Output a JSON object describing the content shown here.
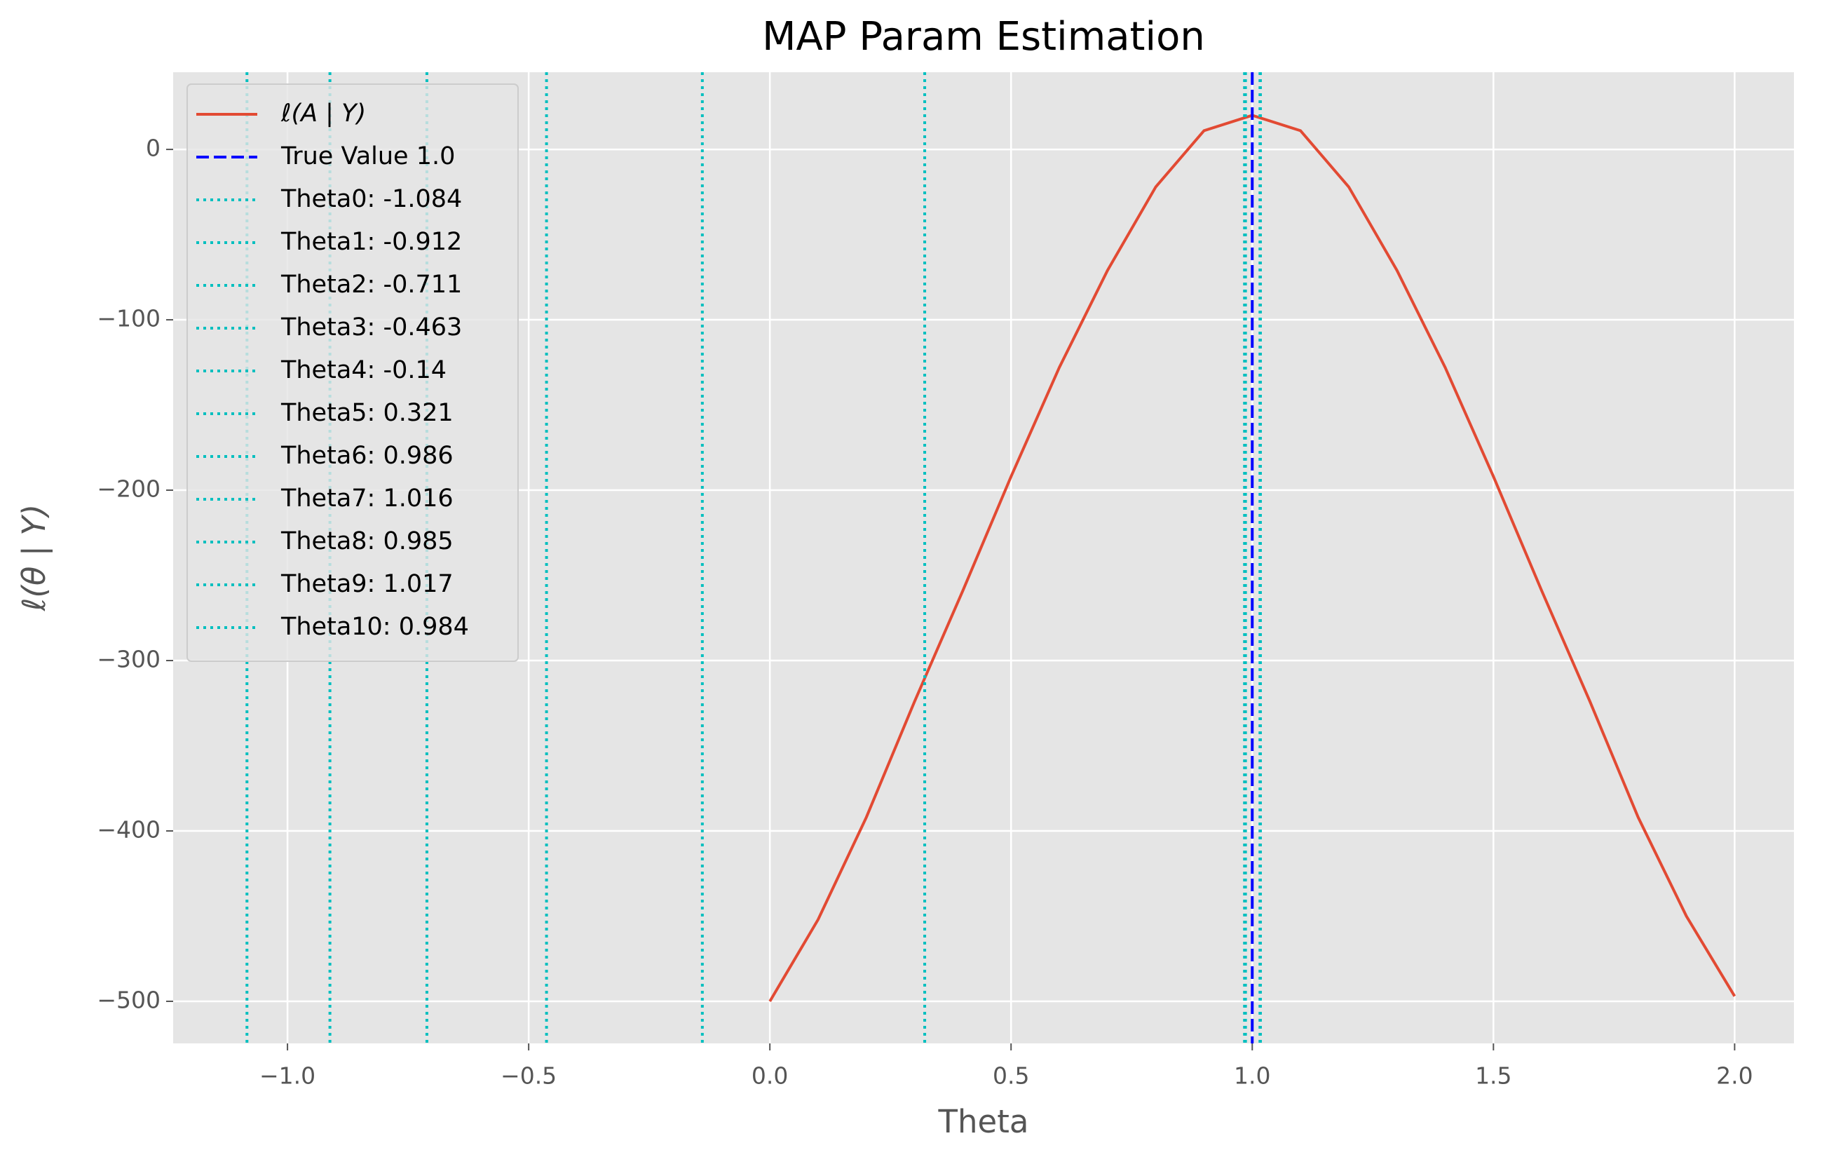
{
  "chart_data": {
    "type": "line",
    "title": "MAP Param Estimation",
    "xlabel": "Theta",
    "ylabel": "ℓ(θ | Y)",
    "xlim": [
      -1.237,
      2.123
    ],
    "ylim": [
      -524.7,
      45.3
    ],
    "xticks": [
      {
        "value": -1,
        "label": "−1.0"
      },
      {
        "value": -0.5,
        "label": "−0.5"
      },
      {
        "value": 0,
        "label": "0.0"
      },
      0.5,
      {
        "value": 1,
        "label": "1.0"
      },
      1.5,
      {
        "value": 2,
        "label": "2.0"
      }
    ],
    "yticks": [
      0,
      {
        "value": -100,
        "label": "−100"
      },
      {
        "value": -200,
        "label": "−200"
      },
      {
        "value": -300,
        "label": "−300"
      },
      {
        "value": -400,
        "label": "−400"
      },
      {
        "value": -500,
        "label": "−500"
      }
    ],
    "grid": true,
    "legend": "upper left",
    "x": [
      0,
      0.1,
      0.2,
      0.3,
      0.4,
      0.5,
      0.6,
      0.7,
      0.8,
      0.9,
      1.0,
      1.1,
      1.2,
      1.3,
      1.4,
      1.5,
      1.6,
      1.7,
      1.8,
      1.9,
      2.0
    ],
    "series": [
      {
        "name": "ℓ(A | Y)",
        "color": "#e24a33",
        "values": [
          -500,
          -452,
          -392,
          -324,
          -259,
          -192,
          -128,
          -71,
          -22,
          11,
          20,
          11,
          -22,
          -71,
          -128,
          -192,
          -259,
          -324,
          -392,
          -450,
          -497
        ]
      }
    ],
    "vlines": [
      {
        "name": "True Value 1.0",
        "x": 1.0,
        "color": "#0000ff",
        "style": "dashed"
      },
      {
        "name": "Theta0: -1.084",
        "x": -1.084,
        "color": "#00bfbf",
        "style": "dotted"
      },
      {
        "name": "Theta1: -0.912",
        "x": -0.912,
        "color": "#00bfbf",
        "style": "dotted"
      },
      {
        "name": "Theta2: -0.711",
        "x": -0.711,
        "color": "#00bfbf",
        "style": "dotted"
      },
      {
        "name": "Theta3: -0.463",
        "x": -0.463,
        "color": "#00bfbf",
        "style": "dotted"
      },
      {
        "name": "Theta4: -0.14",
        "x": -0.14,
        "color": "#00bfbf",
        "style": "dotted"
      },
      {
        "name": "Theta5: 0.321",
        "x": 0.321,
        "color": "#00bfbf",
        "style": "dotted"
      },
      {
        "name": "Theta6: 0.986",
        "x": 0.986,
        "color": "#00bfbf",
        "style": "dotted"
      },
      {
        "name": "Theta7: 1.016",
        "x": 1.016,
        "color": "#00bfbf",
        "style": "dotted"
      },
      {
        "name": "Theta8: 0.985",
        "x": 0.985,
        "color": "#00bfbf",
        "style": "dotted"
      },
      {
        "name": "Theta9: 1.017",
        "x": 1.017,
        "color": "#00bfbf",
        "style": "dotted"
      },
      {
        "name": "Theta10: 0.984",
        "x": 0.984,
        "color": "#00bfbf",
        "style": "dotted"
      }
    ]
  }
}
